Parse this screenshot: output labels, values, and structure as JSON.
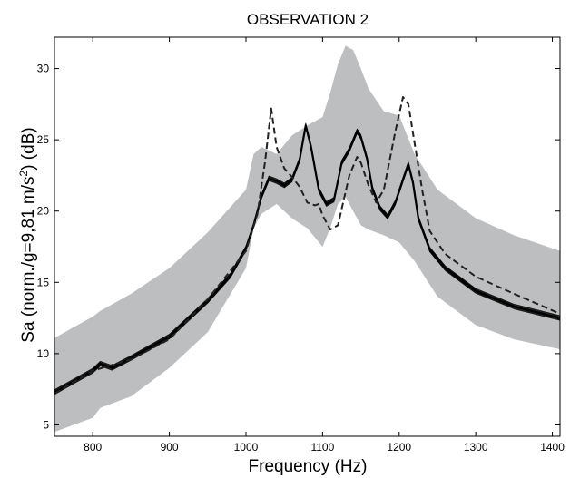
{
  "chart_data": {
    "type": "line",
    "title": "OBSERVATION  2",
    "xlabel": "Frequency (Hz)",
    "ylabel_main": "Sa (norm./g=9,81 m/s",
    "ylabel_sup": "2",
    "ylabel_tail": ") (dB)",
    "xlim": [
      750,
      1410
    ],
    "ylim": [
      4.2,
      32.2
    ],
    "xticks": [
      800,
      900,
      1000,
      1100,
      1200,
      1300,
      1400
    ],
    "yticks": [
      5,
      10,
      15,
      20,
      25,
      30
    ],
    "grid": false,
    "colors": {
      "band": "#bcbec0",
      "solid": "#000000",
      "dashed": "#222222"
    },
    "band": {
      "x": [
        750,
        800,
        810,
        850,
        900,
        950,
        1000,
        1010,
        1020,
        1040,
        1060,
        1080,
        1100,
        1110,
        1120,
        1130,
        1140,
        1150,
        1160,
        1180,
        1200,
        1220,
        1250,
        1300,
        1350,
        1410
      ],
      "upper": [
        11.1,
        12.6,
        13.0,
        14.2,
        16.0,
        18.5,
        21.5,
        24.0,
        24.5,
        24.0,
        25.3,
        26.0,
        26.6,
        28.3,
        30.3,
        31.6,
        31.3,
        30.0,
        28.6,
        27.0,
        26.7,
        24.0,
        21.5,
        19.5,
        18.3,
        17.2
      ],
      "lower": [
        4.5,
        5.5,
        6.2,
        7.0,
        9.0,
        11.5,
        16.0,
        18.8,
        19.8,
        20.5,
        19.5,
        18.8,
        17.5,
        18.8,
        20.5,
        21.0,
        20.0,
        19.0,
        18.7,
        18.3,
        17.8,
        16.5,
        14.0,
        12.0,
        11.0,
        10.3
      ]
    },
    "series": [
      {
        "style": "solid",
        "x": [
          750,
          780,
          800,
          810,
          825,
          850,
          900,
          950,
          980,
          1000,
          1010,
          1020,
          1030,
          1040,
          1050,
          1060,
          1070,
          1078,
          1085,
          1095,
          1105,
          1115,
          1125,
          1135,
          1145,
          1150,
          1158,
          1165,
          1175,
          1185,
          1195,
          1205,
          1212,
          1218,
          1225,
          1240,
          1260,
          1300,
          1350,
          1410
        ],
        "y": [
          7.3,
          8.2,
          8.8,
          9.3,
          9.0,
          9.7,
          11.2,
          13.7,
          15.5,
          17.4,
          19.0,
          21.0,
          22.3,
          22.1,
          21.8,
          22.2,
          23.6,
          26.0,
          24.5,
          21.5,
          20.5,
          20.8,
          23.4,
          24.3,
          25.6,
          25.2,
          23.7,
          21.6,
          20.2,
          19.6,
          20.6,
          22.2,
          23.3,
          22.0,
          19.5,
          17.3,
          16.0,
          14.4,
          13.3,
          12.5
        ]
      },
      {
        "style": "dashed",
        "x": [
          750,
          800,
          850,
          900,
          950,
          1000,
          1015,
          1025,
          1033,
          1040,
          1050,
          1060,
          1070,
          1080,
          1090,
          1095,
          1100,
          1110,
          1120,
          1135,
          1145,
          1150,
          1160,
          1170,
          1180,
          1195,
          1205,
          1212,
          1220,
          1230,
          1240,
          1260,
          1300,
          1350,
          1410
        ],
        "y": [
          7.2,
          8.8,
          9.6,
          11.0,
          13.8,
          17.2,
          19.8,
          23.5,
          27.2,
          24.5,
          23.0,
          22.4,
          21.7,
          20.6,
          20.4,
          20.5,
          19.7,
          18.7,
          19.0,
          22.5,
          23.8,
          23.4,
          21.8,
          20.6,
          21.5,
          25.6,
          28.0,
          27.5,
          24.8,
          21.5,
          18.6,
          17.0,
          15.4,
          14.2,
          12.8
        ]
      }
    ]
  }
}
